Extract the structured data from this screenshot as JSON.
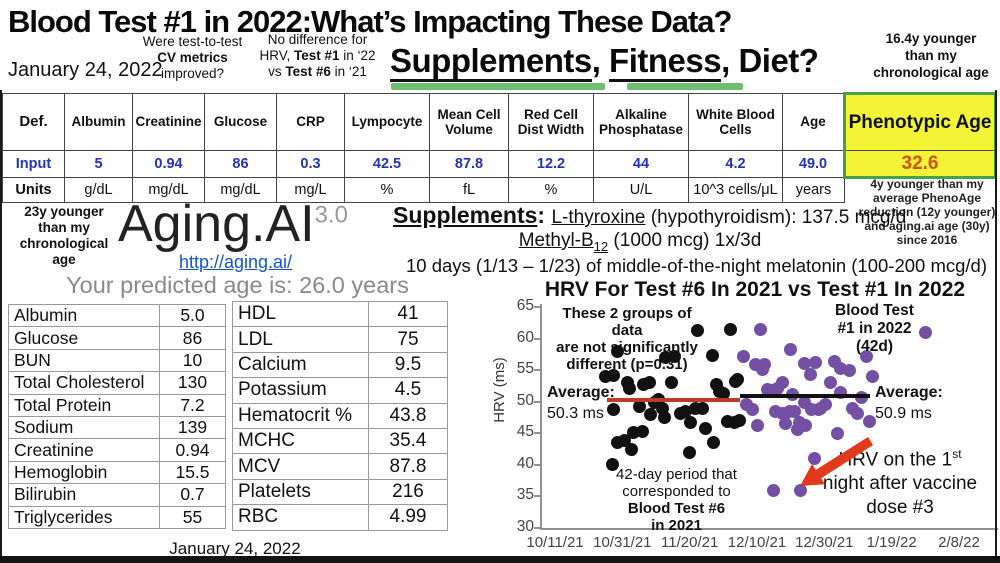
{
  "slide": {
    "title": "Blood Test #1 in 2022:What’s Impacting These Data?",
    "subtitle_parts": [
      "Supplements",
      ", ",
      "Fitness",
      ", ",
      "Diet?"
    ],
    "date": "January 24, 2022",
    "note_cv": [
      "Were test-to-test",
      "CV metrics",
      "improved?"
    ],
    "note_hrv_l1": "No difference for",
    "note_hrv_l2": [
      "HRV, ",
      "Test #1",
      " in ‘22"
    ],
    "note_hrv_l3": [
      "vs ",
      "Test #6",
      " in ‘21"
    ],
    "note_younger": [
      "16.4y younger",
      "than my",
      "chronological age"
    ]
  },
  "blood_table": {
    "row_labels": {
      "def": "Def.",
      "input": "Input",
      "units": "Units"
    },
    "columns": [
      {
        "name": "Albumin",
        "input": "5",
        "units": "g/dL"
      },
      {
        "name": "Creatinine",
        "input": "0.94",
        "units": "mg/dL"
      },
      {
        "name": "Glucose",
        "input": "86",
        "units": "mg/dL"
      },
      {
        "name": "CRP",
        "input": "0.3",
        "units": "mg/L"
      },
      {
        "name": "Lympocyte",
        "input": "42.5",
        "units": "%"
      },
      {
        "name": "Mean Cell Volume",
        "input": "87.8",
        "units": "fL"
      },
      {
        "name": "Red Cell Dist Width",
        "input": "12.2",
        "units": "%"
      },
      {
        "name": "Alkaline Phosphatase",
        "input": "44",
        "units": "U/L"
      },
      {
        "name": "White Blood Cells",
        "input": "4.2",
        "units": "10^3 cells/μL"
      },
      {
        "name": "Age",
        "input": "49.0",
        "units": "years"
      },
      {
        "name": "Phenotypic Age",
        "input": "32.6",
        "units": ""
      }
    ],
    "pheno_note": "4y younger than my average PhenoAge reduction (12y younger) and aging.ai age (30y) since 2016"
  },
  "aging_ai": {
    "note": [
      "23y younger",
      "than my",
      "chronological",
      "age"
    ],
    "logo": "Aging.AI",
    "logo_version": "3.0",
    "url": "http://aging.ai/",
    "predicted": "Your predicted age is: 26.0 years"
  },
  "supplements": {
    "heading": "Supplements",
    "colon": ": ",
    "item1_name": "L-thyroxine",
    "item1_rest": " (hypothyroidism): 137.5 mcg/d",
    "item2_name": "Methyl-B",
    "item2_sub": "12",
    "item2_rest": " (1000 mcg) 1x/3d",
    "item3": "10 days (1/13 – 1/23) of middle-of-the-night melatonin (100-200 mcg/d)"
  },
  "results_table_a": {
    "rows": [
      [
        "Albumin",
        "5.0"
      ],
      [
        "Glucose",
        "86"
      ],
      [
        "BUN",
        "10"
      ],
      [
        "Total Cholesterol",
        "130"
      ],
      [
        "Total Protein",
        "7.2"
      ],
      [
        "Sodium",
        "139"
      ],
      [
        "Creatinine",
        "0.94"
      ],
      [
        "Hemoglobin",
        "15.5"
      ],
      [
        "Bilirubin",
        "0.7"
      ],
      [
        "Triglycerides",
        "55"
      ]
    ]
  },
  "results_table_b": {
    "rows": [
      [
        "HDL",
        "41"
      ],
      [
        "LDL",
        "75"
      ],
      [
        "Calcium",
        "9.5"
      ],
      [
        "Potassium",
        "4.5"
      ],
      [
        "Hematocrit %",
        "43.8"
      ],
      [
        "MCHC",
        "35.4"
      ],
      [
        "MCV",
        "87.8"
      ],
      [
        "Platelets",
        "216"
      ],
      [
        "RBC",
        "4.99"
      ]
    ]
  },
  "tables_date": "January 24, 2022",
  "chart_data": {
    "type": "scatter",
    "title": "HRV For Test #6 In 2021 vs Test #1 In 2022",
    "ylabel": "HRV (ms)",
    "ylim": [
      30,
      65
    ],
    "y_ticks": [
      30,
      35,
      40,
      45,
      50,
      55,
      60,
      65
    ],
    "x_unit": "days since 10/11/21",
    "x_tick_days": [
      0,
      20,
      40,
      60,
      80,
      100,
      120
    ],
    "x_tick_labels": [
      "10/11/21",
      "10/31/21",
      "11/20/21",
      "12/10/21",
      "12/30/21",
      "1/19/22",
      "2/8/22"
    ],
    "grid": false,
    "series": [
      {
        "name": "Blood Test #6 in 2021",
        "color": "#111111",
        "points": [
          [
            15,
            54
          ],
          [
            17,
            40
          ],
          [
            17.3,
            48.7
          ],
          [
            17.5,
            54.2
          ],
          [
            18.5,
            58
          ],
          [
            18.5,
            43.6
          ],
          [
            20.5,
            43.8
          ],
          [
            21.5,
            53
          ],
          [
            22,
            52.1
          ],
          [
            22.6,
            42.5
          ],
          [
            23.2,
            45.2
          ],
          [
            25,
            49.3
          ],
          [
            25.9,
            45.3
          ],
          [
            26.2,
            52.8
          ],
          [
            28,
            53.1
          ],
          [
            28.3,
            48
          ],
          [
            29.5,
            49.8
          ],
          [
            30.8,
            50.4
          ],
          [
            31.8,
            48.9
          ],
          [
            32.4,
            47.5
          ],
          [
            32.7,
            57
          ],
          [
            34.5,
            53
          ],
          [
            35.4,
            57.2
          ],
          [
            37.2,
            48.1
          ],
          [
            38.7,
            48.5
          ],
          [
            39.9,
            42
          ],
          [
            40.2,
            46.7
          ],
          [
            41.7,
            48.9
          ],
          [
            42.3,
            61.2
          ],
          [
            43.8,
            49
          ],
          [
            44.6,
            45.8
          ],
          [
            46.7,
            57.3
          ],
          [
            47,
            43.6
          ],
          [
            47.9,
            52.7
          ],
          [
            48.8,
            51.6
          ],
          [
            50,
            51.3
          ],
          [
            51.2,
            46.9
          ],
          [
            52,
            61.4
          ],
          [
            53.3,
            46.7
          ],
          [
            53.6,
            53.2
          ],
          [
            54.2,
            53.5
          ],
          [
            54.8,
            47.1
          ]
        ]
      },
      {
        "name": "Blood Test #1 in 2022",
        "color": "#7350A3",
        "points": [
          [
            56,
            57.2
          ],
          [
            57,
            49.5
          ],
          [
            58.7,
            48.7
          ],
          [
            59.6,
            55.9
          ],
          [
            60.1,
            46.2
          ],
          [
            61.6,
            55.1
          ],
          [
            62.3,
            55.9
          ],
          [
            63,
            51.9
          ],
          [
            64.6,
            51.7
          ],
          [
            65,
            36
          ],
          [
            65.6,
            48.5
          ],
          [
            66,
            52.1
          ],
          [
            67.6,
            53
          ],
          [
            67.6,
            48.2
          ],
          [
            68.5,
            46.6
          ],
          [
            69.6,
            48.5
          ],
          [
            70,
            58.2
          ],
          [
            70.5,
            51.1
          ],
          [
            71,
            48.4
          ],
          [
            72,
            45.6
          ],
          [
            72.5,
            46.7
          ],
          [
            73,
            36
          ],
          [
            74,
            56.1
          ],
          [
            74.2,
            49.8
          ],
          [
            74.5,
            46.2
          ],
          [
            75.8,
            54.3
          ],
          [
            76.2,
            48.7
          ],
          [
            77,
            41
          ],
          [
            77.4,
            56.2
          ],
          [
            78.2,
            48.7
          ],
          [
            79,
            48.9
          ],
          [
            80.4,
            49.5
          ],
          [
            81.9,
            53
          ],
          [
            82.9,
            56.4
          ],
          [
            83.9,
            44.9
          ],
          [
            84.9,
            55.3
          ],
          [
            84.9,
            51.4
          ],
          [
            87.4,
            55
          ],
          [
            88.4,
            48.9
          ],
          [
            89.9,
            48.2
          ],
          [
            90.9,
            50.6
          ],
          [
            92.4,
            57.2
          ],
          [
            93.3,
            46.9
          ],
          [
            94.3,
            54
          ],
          [
            110,
            61
          ]
        ]
      }
    ],
    "avg_lines": [
      {
        "name": "2021 average",
        "value": 50.3,
        "day_start": 15.5,
        "day_end": 55,
        "color": "#C0392B"
      },
      {
        "name": "2022 average",
        "value": 50.9,
        "day_start": 55,
        "day_end": 93.5,
        "color": "#111111"
      }
    ],
    "annotations": {
      "groups_note": [
        "These 2 groups of data",
        "are not significantly",
        "different (p=0.31)"
      ],
      "legend_2022": [
        "Blood Test",
        "#1 in 2022",
        "(42d)"
      ],
      "avg_left": [
        "Average:",
        "50.3 ms"
      ],
      "avg_right": [
        "Average:",
        "50.9 ms"
      ],
      "period_note": [
        "42-day period that",
        "corresponded to",
        "Blood Test #6",
        "in 2021"
      ],
      "vaccine_l1_pre": "HRV on the 1",
      "vaccine_l1_sup": "st",
      "vaccine_l2": "night after vaccine",
      "vaccine_l3": "dose #3"
    }
  },
  "colors": {
    "accent_yellow": "#F4F437",
    "accent_green_border": "#45A049",
    "underline_green": "#6FBF73",
    "input_blue": "#2233BB",
    "pheno_orange": "#D2500A",
    "dot_purple": "#7350A3",
    "dot_black": "#111111",
    "avg_red": "#C0392B",
    "arrow_red": "#E0391B"
  }
}
